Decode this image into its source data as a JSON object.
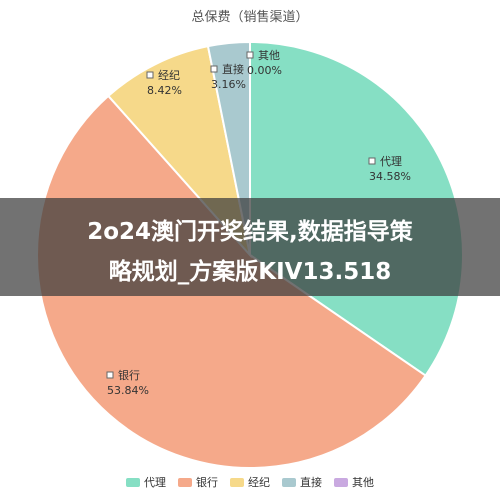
{
  "chart_data": {
    "type": "pie",
    "title": "总保费（销售渠道）",
    "slices": [
      {
        "name": "代理",
        "value": 34.58,
        "label": "34.58%",
        "color": "#86DFC4"
      },
      {
        "name": "银行",
        "value": 53.84,
        "label": "53.84%",
        "color": "#F5A98A"
      },
      {
        "name": "经纪",
        "value": 8.42,
        "label": "8.42%",
        "color": "#F6D98A"
      },
      {
        "name": "直接",
        "value": 3.16,
        "label": "3.16%",
        "color": "#A9C9CF"
      },
      {
        "name": "其他",
        "value": 0.0,
        "label": "0.00%",
        "color": "#C9A9E0"
      }
    ],
    "legend_position": "bottom"
  },
  "overlay": {
    "line1": "2o24澳门开奖结果,数据指导策",
    "line2": "略规划_方案版KIV13.518"
  }
}
